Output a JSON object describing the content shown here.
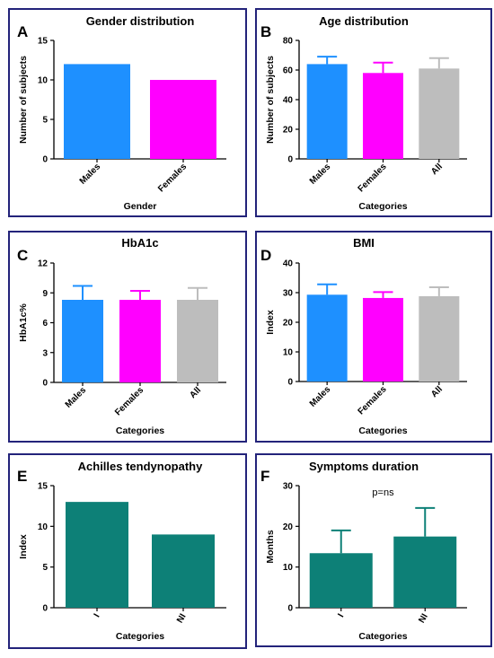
{
  "chart_data": [
    {
      "panel": "A",
      "type": "bar",
      "title": "Gender distribution",
      "xlabel": "Gender",
      "ylabel": "Number of subjects",
      "categories": [
        "Males",
        "Females"
      ],
      "values": [
        12,
        10
      ],
      "errors": [
        null,
        null
      ],
      "colors": [
        "#1e90ff",
        "#ff00ff"
      ],
      "ylim": [
        0,
        15
      ],
      "yticks": [
        0,
        5,
        10,
        15
      ],
      "grid": false,
      "legend": "none"
    },
    {
      "panel": "B",
      "type": "bar",
      "title": "Age distribution",
      "xlabel": "Categories",
      "ylabel": "Number of subjects",
      "categories": [
        "Males",
        "Females",
        "All"
      ],
      "values": [
        64,
        58,
        61
      ],
      "errors": [
        5,
        7,
        7
      ],
      "colors": [
        "#1e90ff",
        "#ff00ff",
        "#bdbdbd"
      ],
      "ylim": [
        0,
        80
      ],
      "yticks": [
        0,
        20,
        40,
        60,
        80
      ],
      "grid": false,
      "legend": "none"
    },
    {
      "panel": "C",
      "type": "bar",
      "title": "HbA1c",
      "xlabel": "Categories",
      "ylabel": "HbA1c%",
      "categories": [
        "Males",
        "Females",
        "All"
      ],
      "values": [
        8.3,
        8.3,
        8.3
      ],
      "errors": [
        1.4,
        0.9,
        1.2
      ],
      "colors": [
        "#1e90ff",
        "#ff00ff",
        "#bdbdbd"
      ],
      "ylim": [
        0,
        12
      ],
      "yticks": [
        0,
        3,
        6,
        9,
        12
      ],
      "grid": false,
      "legend": "none"
    },
    {
      "panel": "D",
      "type": "bar",
      "title": "BMI",
      "xlabel": "Categories",
      "ylabel": "Index",
      "categories": [
        "Males",
        "Females",
        "All"
      ],
      "values": [
        29.3,
        28.2,
        28.8
      ],
      "errors": [
        3.5,
        2,
        3
      ],
      "colors": [
        "#1e90ff",
        "#ff00ff",
        "#bdbdbd"
      ],
      "ylim": [
        0,
        40
      ],
      "yticks": [
        0,
        10,
        20,
        30,
        40
      ],
      "grid": false,
      "legend": "none"
    },
    {
      "panel": "E",
      "type": "bar",
      "title": "Achilles tendynopathy",
      "xlabel": "Categories",
      "ylabel": "Index",
      "categories": [
        "I",
        "NI"
      ],
      "values": [
        13,
        9
      ],
      "errors": [
        null,
        null
      ],
      "colors": [
        "#0d8077",
        "#0d8077"
      ],
      "ylim": [
        0,
        15
      ],
      "yticks": [
        0,
        5,
        10,
        15
      ],
      "grid": false,
      "legend": "none"
    },
    {
      "panel": "F",
      "type": "bar",
      "title": "Symptoms duration",
      "xlabel": "Categories",
      "ylabel": "Months",
      "categories": [
        "I",
        "NI"
      ],
      "values": [
        13.4,
        17.5
      ],
      "errors": [
        5.6,
        7
      ],
      "colors": [
        "#0d8077",
        "#0d8077"
      ],
      "ylim": [
        0,
        30
      ],
      "yticks": [
        0,
        10,
        20,
        30
      ],
      "annotation": "p=ns",
      "grid": false,
      "legend": "none"
    }
  ]
}
